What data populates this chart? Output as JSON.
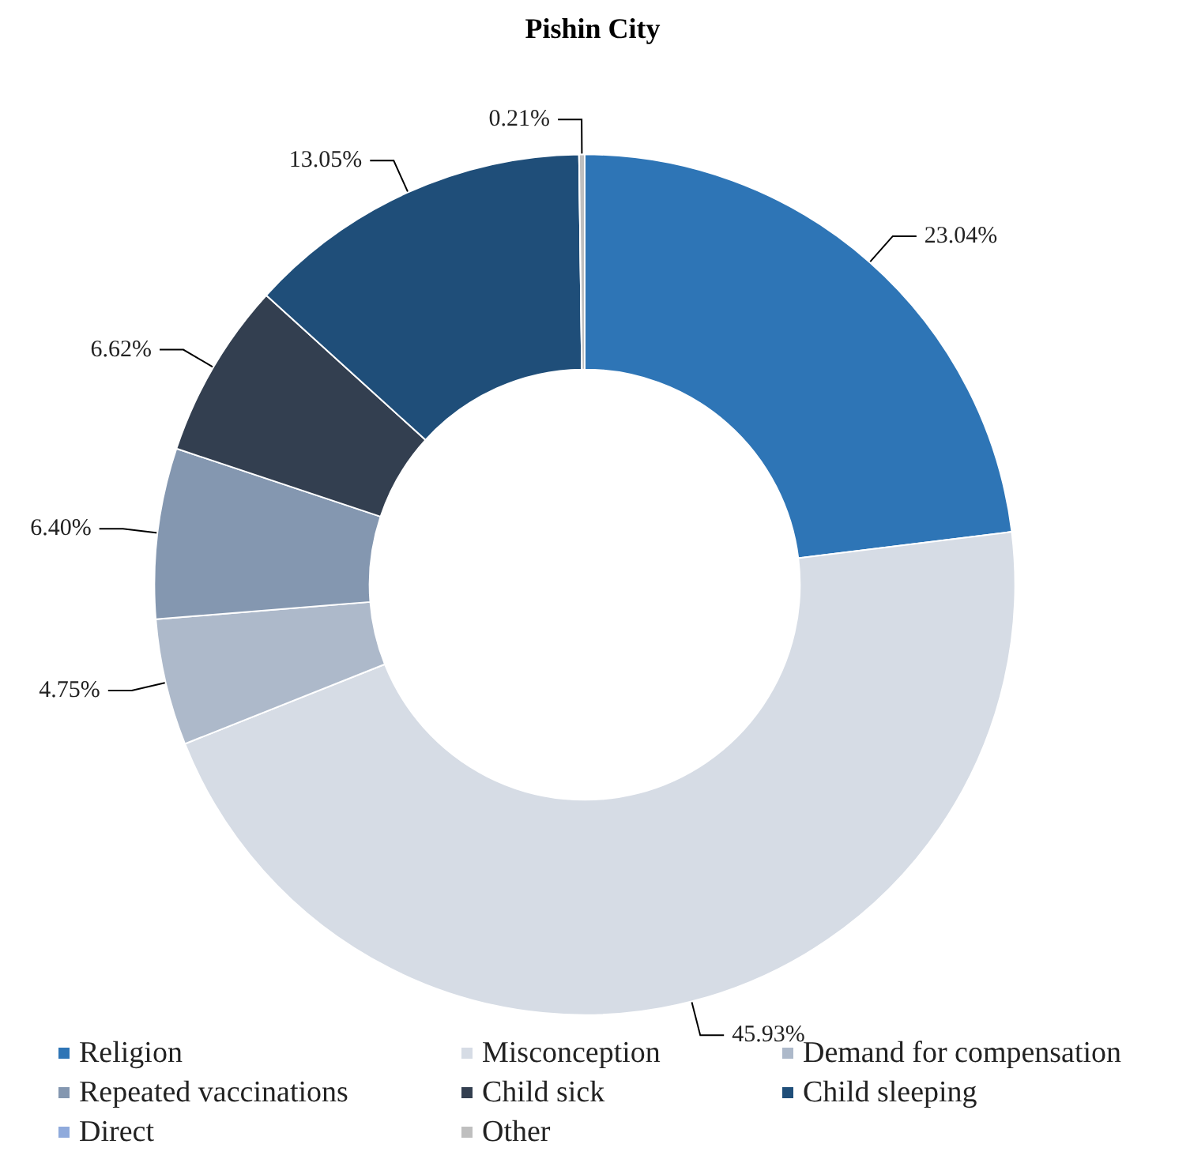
{
  "chart_data": {
    "type": "donut",
    "title": "Pishin City",
    "categories": [
      "Religion",
      "Misconception",
      "Demand for compensation",
      "Repeated vaccinations",
      "Child sick",
      "Child sleeping",
      "Direct",
      "Other"
    ],
    "values": [
      23.04,
      45.93,
      4.75,
      6.4,
      6.62,
      13.05,
      0,
      0.21
    ],
    "value_labels": [
      "23.04%",
      "45.93%",
      "4.75%",
      "6.40%",
      "6.62%",
      "13.05%",
      null,
      "0.21%"
    ],
    "colors": [
      "#2e75b6",
      "#d6dce5",
      "#adb9ca",
      "#8497b0",
      "#333f50",
      "#1f4e79",
      "#8faadc",
      "#bfbfbf"
    ],
    "legend": "bottom"
  }
}
